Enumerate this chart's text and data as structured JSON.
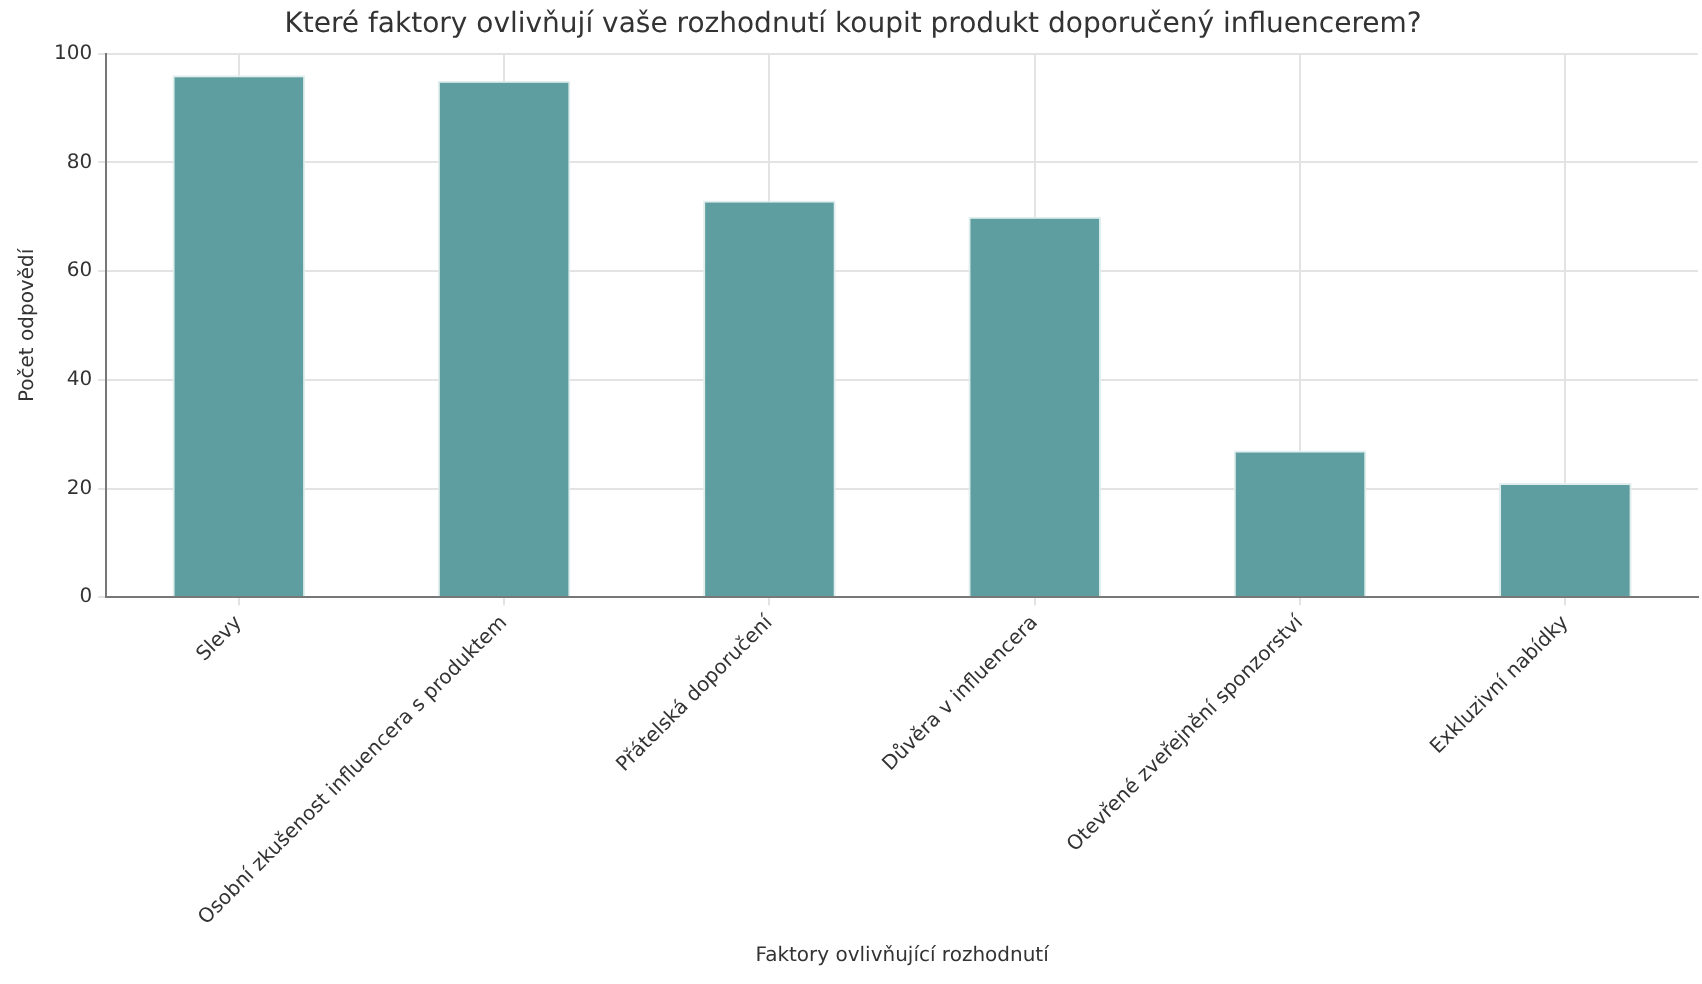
{
  "chart_data": {
    "type": "bar",
    "title": "Které faktory ovlivňují vaše rozhodnutí koupit produkt doporučený influencerem?",
    "xlabel": "Faktory ovlivňující rozhodnutí",
    "ylabel": "Počet odpovědí",
    "categories": [
      "Slevy",
      "Osobní zkušenost influencera s produktem",
      "Přátelská doporučení",
      "Důvěra v influencera",
      "Otevřené zveřejnění sponzorství",
      "Exkluzivní nabídky"
    ],
    "values": [
      96,
      95,
      73,
      70,
      27,
      21
    ],
    "color": "#5f9ea0",
    "ylim": [
      0,
      100
    ],
    "yticks": [
      0,
      20,
      40,
      60,
      80,
      100
    ],
    "grid": true
  }
}
